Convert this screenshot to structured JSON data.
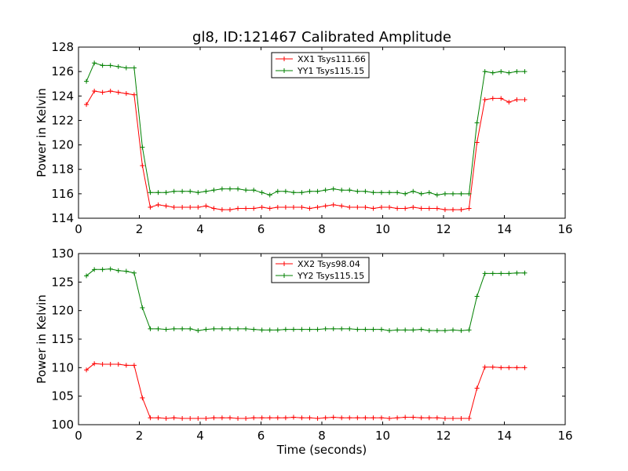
{
  "chart_data": [
    {
      "type": "line",
      "title": "gl8, ID:121467 Calibrated Amplitude",
      "xlabel": "",
      "ylabel": "Power in Kelvin",
      "xlim": [
        0,
        16
      ],
      "ylim": [
        114,
        128
      ],
      "xticks": [
        0,
        2,
        4,
        6,
        8,
        10,
        12,
        14,
        16
      ],
      "yticks": [
        114,
        116,
        118,
        120,
        122,
        124,
        126,
        128
      ],
      "grid": false,
      "legend_position": "upper-center",
      "x": [
        0.26,
        0.52,
        0.79,
        1.05,
        1.31,
        1.57,
        1.83,
        2.1,
        2.36,
        2.62,
        2.88,
        3.14,
        3.41,
        3.67,
        3.93,
        4.19,
        4.45,
        4.72,
        4.98,
        5.24,
        5.5,
        5.76,
        6.03,
        6.29,
        6.55,
        6.81,
        7.07,
        7.34,
        7.6,
        7.86,
        8.12,
        8.38,
        8.65,
        8.91,
        9.17,
        9.43,
        9.69,
        9.96,
        10.22,
        10.48,
        10.74,
        11.0,
        11.27,
        11.53,
        11.79,
        12.05,
        12.31,
        12.58,
        12.84,
        13.1,
        13.36,
        13.62,
        13.89,
        14.15,
        14.41,
        14.67
      ],
      "series": [
        {
          "name": "XX1 Tsys111.66",
          "color": "#ff0000",
          "values": [
            123.3,
            124.4,
            124.3,
            124.4,
            124.3,
            124.2,
            124.1,
            118.3,
            114.9,
            115.1,
            115.0,
            114.9,
            114.9,
            114.9,
            114.9,
            115.0,
            114.8,
            114.7,
            114.7,
            114.8,
            114.8,
            114.8,
            114.9,
            114.8,
            114.9,
            114.9,
            114.9,
            114.9,
            114.8,
            114.9,
            115.0,
            115.1,
            115.0,
            114.9,
            114.9,
            114.9,
            114.8,
            114.9,
            114.9,
            114.8,
            114.8,
            114.9,
            114.8,
            114.8,
            114.8,
            114.7,
            114.7,
            114.7,
            114.8,
            120.2,
            123.7,
            123.8,
            123.8,
            123.5,
            123.7,
            123.7
          ]
        },
        {
          "name": "YY1 Tsys115.15",
          "color": "#008000",
          "values": [
            125.2,
            126.7,
            126.5,
            126.5,
            126.4,
            126.3,
            126.3,
            119.8,
            116.1,
            116.1,
            116.1,
            116.2,
            116.2,
            116.2,
            116.1,
            116.2,
            116.3,
            116.4,
            116.4,
            116.4,
            116.3,
            116.3,
            116.1,
            115.9,
            116.2,
            116.2,
            116.1,
            116.1,
            116.2,
            116.2,
            116.3,
            116.4,
            116.3,
            116.3,
            116.2,
            116.2,
            116.1,
            116.1,
            116.1,
            116.1,
            116.0,
            116.2,
            116.0,
            116.1,
            115.9,
            116.0,
            116.0,
            116.0,
            116.0,
            121.8,
            126.0,
            125.9,
            126.0,
            125.9,
            126.0,
            126.0
          ]
        }
      ]
    },
    {
      "type": "line",
      "title": "",
      "xlabel": "Time (seconds)",
      "ylabel": "Power in Kelvin",
      "xlim": [
        0,
        16
      ],
      "ylim": [
        100,
        130
      ],
      "xticks": [
        0,
        2,
        4,
        6,
        8,
        10,
        12,
        14,
        16
      ],
      "yticks": [
        100,
        105,
        110,
        115,
        120,
        125,
        130
      ],
      "grid": false,
      "legend_position": "upper-center",
      "x": [
        0.26,
        0.52,
        0.79,
        1.05,
        1.31,
        1.57,
        1.83,
        2.1,
        2.36,
        2.62,
        2.88,
        3.14,
        3.41,
        3.67,
        3.93,
        4.19,
        4.45,
        4.72,
        4.98,
        5.24,
        5.5,
        5.76,
        6.03,
        6.29,
        6.55,
        6.81,
        7.07,
        7.34,
        7.6,
        7.86,
        8.12,
        8.38,
        8.65,
        8.91,
        9.17,
        9.43,
        9.69,
        9.96,
        10.22,
        10.48,
        10.74,
        11.0,
        11.27,
        11.53,
        11.79,
        12.05,
        12.31,
        12.58,
        12.84,
        13.1,
        13.36,
        13.62,
        13.89,
        14.15,
        14.41,
        14.67
      ],
      "series": [
        {
          "name": "XX2 Tsys98.04",
          "color": "#ff0000",
          "values": [
            109.6,
            110.7,
            110.6,
            110.6,
            110.6,
            110.4,
            110.4,
            104.7,
            101.2,
            101.2,
            101.1,
            101.2,
            101.1,
            101.1,
            101.1,
            101.1,
            101.2,
            101.2,
            101.2,
            101.1,
            101.1,
            101.2,
            101.2,
            101.2,
            101.2,
            101.2,
            101.3,
            101.2,
            101.2,
            101.1,
            101.2,
            101.3,
            101.2,
            101.2,
            101.2,
            101.2,
            101.2,
            101.2,
            101.1,
            101.2,
            101.3,
            101.3,
            101.2,
            101.2,
            101.2,
            101.1,
            101.1,
            101.1,
            101.1,
            106.4,
            110.1,
            110.1,
            110.0,
            110.0,
            110.0,
            110.0
          ]
        },
        {
          "name": "YY2 Tsys115.15",
          "color": "#008000",
          "values": [
            126.1,
            127.2,
            127.2,
            127.3,
            127.0,
            126.9,
            126.6,
            120.5,
            116.8,
            116.8,
            116.7,
            116.8,
            116.8,
            116.8,
            116.5,
            116.7,
            116.8,
            116.8,
            116.8,
            116.8,
            116.8,
            116.7,
            116.6,
            116.6,
            116.6,
            116.7,
            116.7,
            116.7,
            116.7,
            116.7,
            116.8,
            116.8,
            116.8,
            116.8,
            116.7,
            116.7,
            116.7,
            116.7,
            116.5,
            116.6,
            116.6,
            116.6,
            116.7,
            116.5,
            116.5,
            116.5,
            116.6,
            116.5,
            116.6,
            122.5,
            126.5,
            126.5,
            126.5,
            126.5,
            126.6,
            126.6
          ]
        }
      ]
    }
  ]
}
